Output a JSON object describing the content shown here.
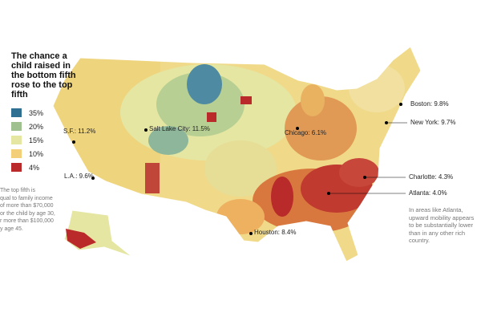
{
  "title": "The chance a child raised in the bottom fifth rose to the top fifth",
  "legend": [
    {
      "label": "35%",
      "color": "#2f6f92"
    },
    {
      "label": "20%",
      "color": "#9fc08f"
    },
    {
      "label": "15%",
      "color": "#e4e6a2"
    },
    {
      "label": "10%",
      "color": "#f2cf78"
    },
    {
      "label": "4%",
      "color": "#bb2a2a"
    }
  ],
  "cities": [
    "S.F.: 11.2%",
    "Salt Lake City: 11.5%",
    "Chicago: 6.1%",
    "Boston: 9.8%",
    "New York: 9.7%",
    "L.A.: 9.6%",
    "Charlotte: 4.3%",
    "Atlanta: 4.0%",
    "Houston: 8.4%"
  ],
  "note_left": [
    "The top fifth is",
    "qual to family income",
    "of more than $70,000",
    "or the child by age 30,",
    "r more than $100,000",
    "y age 45."
  ],
  "note_right": "In areas like Atlanta, upward mobility appears to be substantially lower than in any other rich country."
}
